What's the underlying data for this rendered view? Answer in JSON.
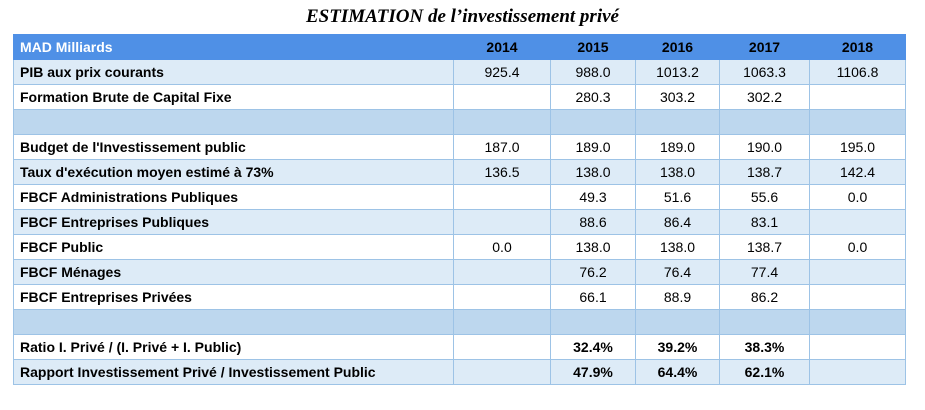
{
  "title": "ESTIMATION de l’investissement privé",
  "header": {
    "label": "MAD Milliards",
    "years": [
      "2014",
      "2015",
      "2016",
      "2017",
      "2018"
    ]
  },
  "rows": [
    {
      "label": "PIB aux prix courants",
      "values": [
        "925.4",
        "988.0",
        "1013.2",
        "1063.3",
        "1106.8"
      ]
    },
    {
      "label": "Formation Brute de Capital Fixe",
      "values": [
        "",
        "280.3",
        "303.2",
        "302.2",
        ""
      ]
    },
    {
      "label": "",
      "values": [
        "",
        "",
        "",
        "",
        ""
      ]
    },
    {
      "label": "Budget de l'Investissement public",
      "values": [
        "187.0",
        "189.0",
        "189.0",
        "190.0",
        "195.0"
      ]
    },
    {
      "label": "Taux d'exécution moyen estimé à 73%",
      "values": [
        "136.5",
        "138.0",
        "138.0",
        "138.7",
        "142.4"
      ]
    },
    {
      "label": "FBCF Administrations Publiques",
      "values": [
        "",
        "49.3",
        "51.6",
        "55.6",
        "0.0"
      ]
    },
    {
      "label": "FBCF Entreprises Publiques",
      "values": [
        "",
        "88.6",
        "86.4",
        "83.1",
        ""
      ]
    },
    {
      "label": "FBCF Public",
      "values": [
        "0.0",
        "138.0",
        "138.0",
        "138.7",
        "0.0"
      ]
    },
    {
      "label": "FBCF Ménages",
      "values": [
        "",
        "76.2",
        "76.4",
        "77.4",
        ""
      ]
    },
    {
      "label": "FBCF Entreprises Privées",
      "values": [
        "",
        "66.1",
        "88.9",
        "86.2",
        ""
      ]
    },
    {
      "label": "",
      "values": [
        "",
        "",
        "",
        "",
        ""
      ]
    },
    {
      "label": "Ratio I. Privé / (I. Privé + I. Public)",
      "values": [
        "",
        "32.4%",
        "39.2%",
        "38.3%",
        ""
      ]
    },
    {
      "label": "Rapport Investissement Privé / Investissement Public",
      "values": [
        "",
        "47.9%",
        "64.4%",
        "62.1%",
        ""
      ]
    }
  ]
}
